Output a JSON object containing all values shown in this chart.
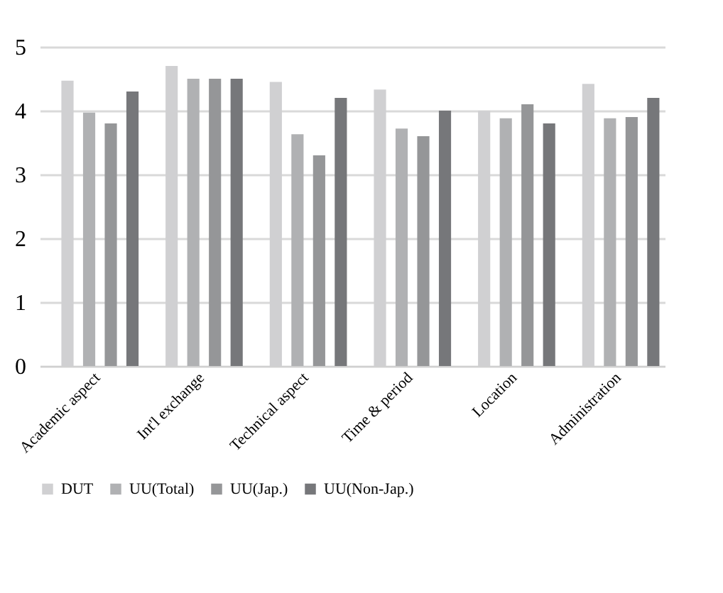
{
  "chart_data": {
    "type": "bar",
    "categories": [
      "Academic aspect",
      "Int'l exchange",
      "Technical aspect",
      "Time & period",
      "Location",
      "Administration"
    ],
    "series": [
      {
        "name": "DUT",
        "color": "#d0d0d2",
        "values": [
          4.47,
          4.7,
          4.45,
          4.33,
          4.0,
          4.42
        ]
      },
      {
        "name": "UU(Total)",
        "color": "#b0b1b3",
        "values": [
          3.97,
          4.5,
          3.63,
          3.72,
          3.88,
          3.88
        ]
      },
      {
        "name": "UU(Jap.)",
        "color": "#959698",
        "values": [
          3.8,
          4.5,
          3.3,
          3.6,
          4.1,
          3.9
        ]
      },
      {
        "name": "UU(Non-Jap.)",
        "color": "#76777a",
        "values": [
          4.3,
          4.5,
          4.2,
          4.0,
          3.8,
          4.2
        ]
      }
    ],
    "ylim": [
      0,
      5
    ],
    "yticks": [
      0,
      1,
      2,
      3,
      4,
      5
    ],
    "grid": "y",
    "legend": "bottom"
  }
}
